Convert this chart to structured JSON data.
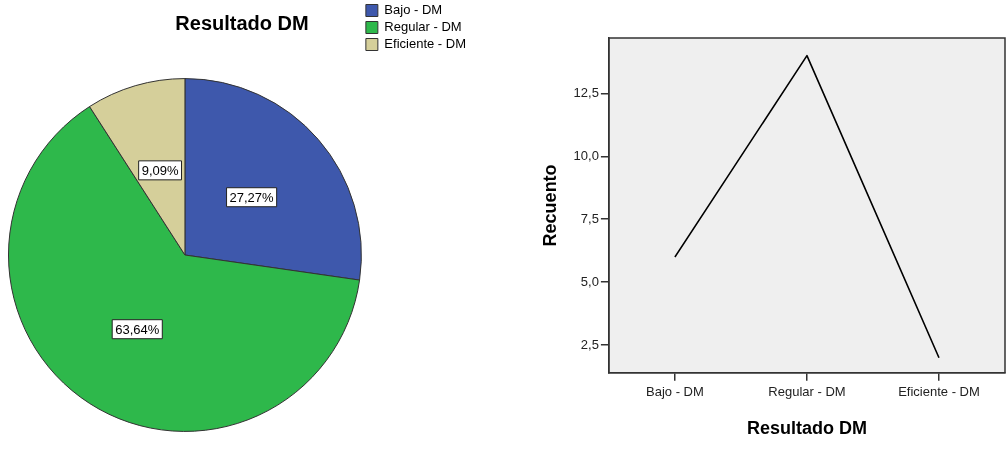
{
  "chart_data": [
    {
      "type": "pie",
      "title": "Resultado DM",
      "categories": [
        "Bajo - DM",
        "Regular - DM",
        "Eficiente - DM"
      ],
      "values": [
        27.27,
        63.64,
        9.09
      ],
      "colors": [
        "#3e58ac",
        "#2eb84b",
        "#d5cf9a"
      ],
      "value_labels": [
        "27,27%",
        "63,64%",
        "9,09%"
      ],
      "legend": "top right"
    },
    {
      "type": "line",
      "xlabel": "Resultado DM",
      "ylabel": "Recuento",
      "categories": [
        "Bajo - DM",
        "Regular - DM",
        "Eficiente - DM"
      ],
      "values": [
        6,
        14,
        2
      ],
      "color": "#000000",
      "ylim": [
        1.4,
        14.7
      ],
      "yticks": [
        {
          "value": 2.5,
          "label": "2,5"
        },
        {
          "value": 5,
          "label": "5,0"
        },
        {
          "value": 7.5,
          "label": "7,5"
        },
        {
          "value": 10,
          "label": "10,0"
        },
        {
          "value": 12.5,
          "label": "12,5"
        }
      ],
      "grid": false,
      "marker": "none"
    }
  ]
}
